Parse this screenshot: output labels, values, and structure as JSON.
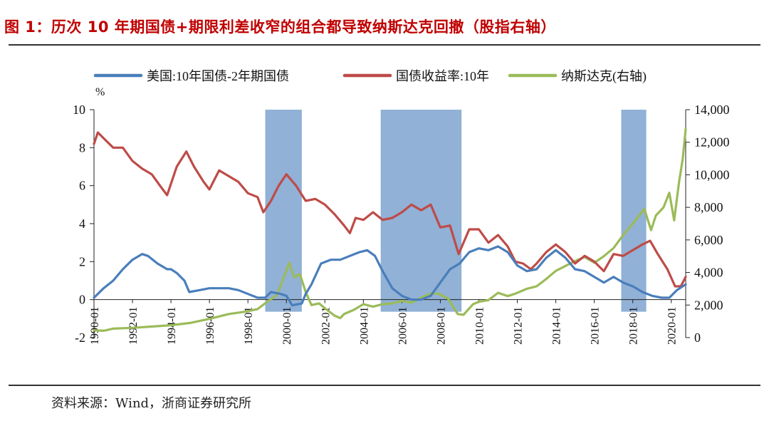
{
  "figure": {
    "title": "图 1：历次 10 年期国债+期限利差收窄的组合都导致纳斯达克回撤（股指右轴）",
    "source": "资料来源：Wind，浙商证券研究所"
  },
  "chart_data": {
    "type": "line",
    "title": "图 1：历次 10 年期国债+期限利差收窄的组合都导致纳斯达克回撤（股指右轴）",
    "left_axis": {
      "unit_label": "%",
      "range": [
        -2,
        10
      ],
      "ticks": [
        -2,
        0,
        2,
        4,
        6,
        8,
        10
      ]
    },
    "right_axis": {
      "range": [
        0,
        14000
      ],
      "ticks": [
        0,
        2000,
        4000,
        6000,
        8000,
        10000,
        12000,
        14000
      ],
      "tick_labels": [
        "0",
        "2,000",
        "4,000",
        "6,000",
        "8,000",
        "10,000",
        "12,000",
        "14,000"
      ]
    },
    "x_axis": {
      "range": [
        1990.0,
        2020.75
      ],
      "ticks": [
        1990,
        1992,
        1994,
        1996,
        1998,
        2000,
        2002,
        2004,
        2006,
        2008,
        2010,
        2012,
        2014,
        2016,
        2018,
        2020
      ],
      "tick_labels": [
        "1990-01",
        "1992-01",
        "1994-01",
        "1996-01",
        "1998-01",
        "2000-01",
        "2002-01",
        "2004-01",
        "2006-01",
        "2008-01",
        "2010-01",
        "2012-01",
        "2014-01",
        "2016-01",
        "2018-01",
        "2020-01"
      ]
    },
    "legend_position": "top",
    "shaded_periods": [
      {
        "start": 1998.9,
        "end": 2000.8
      },
      {
        "start": 2004.9,
        "end": 2009.1
      },
      {
        "start": 2017.4,
        "end": 2018.7
      }
    ],
    "series": [
      {
        "name": "美国:10年国债-2年期国债",
        "color": "#4a7ebb",
        "axis": "left",
        "points": [
          [
            1990.0,
            0.1
          ],
          [
            1990.5,
            0.6
          ],
          [
            1991.0,
            1.0
          ],
          [
            1991.5,
            1.6
          ],
          [
            1992.0,
            2.1
          ],
          [
            1992.5,
            2.4
          ],
          [
            1992.8,
            2.3
          ],
          [
            1993.3,
            1.9
          ],
          [
            1993.8,
            1.6
          ],
          [
            1994.0,
            1.6
          ],
          [
            1994.3,
            1.4
          ],
          [
            1994.7,
            1.0
          ],
          [
            1994.95,
            0.4
          ],
          [
            1995.5,
            0.5
          ],
          [
            1996.0,
            0.6
          ],
          [
            1996.5,
            0.6
          ],
          [
            1997.0,
            0.6
          ],
          [
            1997.5,
            0.5
          ],
          [
            1998.0,
            0.3
          ],
          [
            1998.5,
            0.1
          ],
          [
            1998.9,
            0.1
          ],
          [
            1999.2,
            0.4
          ],
          [
            1999.7,
            0.3
          ],
          [
            2000.0,
            0.2
          ],
          [
            2000.3,
            -0.3
          ],
          [
            2000.8,
            -0.2
          ],
          [
            2001.0,
            0.3
          ],
          [
            2001.3,
            0.8
          ],
          [
            2001.8,
            1.9
          ],
          [
            2002.3,
            2.1
          ],
          [
            2002.8,
            2.1
          ],
          [
            2003.3,
            2.3
          ],
          [
            2003.8,
            2.5
          ],
          [
            2004.2,
            2.6
          ],
          [
            2004.6,
            2.3
          ],
          [
            2005.0,
            1.5
          ],
          [
            2005.5,
            0.6
          ],
          [
            2006.0,
            0.2
          ],
          [
            2006.5,
            0.0
          ],
          [
            2007.0,
            0.0
          ],
          [
            2007.5,
            0.2
          ],
          [
            2008.0,
            0.9
          ],
          [
            2008.5,
            1.6
          ],
          [
            2009.0,
            1.9
          ],
          [
            2009.5,
            2.5
          ],
          [
            2010.0,
            2.7
          ],
          [
            2010.5,
            2.6
          ],
          [
            2011.0,
            2.8
          ],
          [
            2011.5,
            2.5
          ],
          [
            2012.0,
            1.8
          ],
          [
            2012.5,
            1.5
          ],
          [
            2013.0,
            1.6
          ],
          [
            2013.5,
            2.2
          ],
          [
            2014.0,
            2.6
          ],
          [
            2014.5,
            2.2
          ],
          [
            2015.0,
            1.6
          ],
          [
            2015.5,
            1.5
          ],
          [
            2016.0,
            1.2
          ],
          [
            2016.5,
            0.9
          ],
          [
            2017.0,
            1.2
          ],
          [
            2017.5,
            0.9
          ],
          [
            2018.0,
            0.7
          ],
          [
            2018.5,
            0.4
          ],
          [
            2019.0,
            0.2
          ],
          [
            2019.5,
            0.1
          ],
          [
            2019.9,
            0.1
          ],
          [
            2020.3,
            0.5
          ],
          [
            2020.75,
            0.8
          ]
        ]
      },
      {
        "name": "国债收益率:10年",
        "color": "#be4b48",
        "axis": "left",
        "points": [
          [
            1990.0,
            8.2
          ],
          [
            1990.2,
            8.8
          ],
          [
            1990.6,
            8.4
          ],
          [
            1991.0,
            8.0
          ],
          [
            1991.5,
            8.0
          ],
          [
            1992.0,
            7.3
          ],
          [
            1992.5,
            6.9
          ],
          [
            1993.0,
            6.6
          ],
          [
            1993.5,
            5.9
          ],
          [
            1993.8,
            5.5
          ],
          [
            1994.3,
            7.0
          ],
          [
            1994.8,
            7.8
          ],
          [
            1995.2,
            7.0
          ],
          [
            1995.7,
            6.2
          ],
          [
            1996.0,
            5.8
          ],
          [
            1996.5,
            6.8
          ],
          [
            1997.0,
            6.5
          ],
          [
            1997.5,
            6.2
          ],
          [
            1998.0,
            5.6
          ],
          [
            1998.5,
            5.4
          ],
          [
            1998.8,
            4.6
          ],
          [
            1999.2,
            5.2
          ],
          [
            1999.6,
            6.0
          ],
          [
            2000.0,
            6.6
          ],
          [
            2000.5,
            6.0
          ],
          [
            2001.0,
            5.2
          ],
          [
            2001.5,
            5.3
          ],
          [
            2002.0,
            5.0
          ],
          [
            2002.5,
            4.5
          ],
          [
            2003.0,
            3.9
          ],
          [
            2003.3,
            3.5
          ],
          [
            2003.6,
            4.3
          ],
          [
            2004.0,
            4.2
          ],
          [
            2004.5,
            4.6
          ],
          [
            2005.0,
            4.2
          ],
          [
            2005.5,
            4.3
          ],
          [
            2006.0,
            4.6
          ],
          [
            2006.5,
            5.0
          ],
          [
            2007.0,
            4.7
          ],
          [
            2007.5,
            5.0
          ],
          [
            2008.0,
            3.8
          ],
          [
            2008.5,
            3.9
          ],
          [
            2008.95,
            2.4
          ],
          [
            2009.5,
            3.7
          ],
          [
            2010.0,
            3.7
          ],
          [
            2010.5,
            3.0
          ],
          [
            2011.0,
            3.4
          ],
          [
            2011.5,
            2.8
          ],
          [
            2011.9,
            2.0
          ],
          [
            2012.3,
            1.9
          ],
          [
            2012.7,
            1.6
          ],
          [
            2013.0,
            1.9
          ],
          [
            2013.5,
            2.5
          ],
          [
            2014.0,
            2.9
          ],
          [
            2014.5,
            2.5
          ],
          [
            2015.0,
            1.9
          ],
          [
            2015.5,
            2.3
          ],
          [
            2016.0,
            2.0
          ],
          [
            2016.5,
            1.5
          ],
          [
            2017.0,
            2.4
          ],
          [
            2017.5,
            2.3
          ],
          [
            2018.0,
            2.6
          ],
          [
            2018.5,
            2.9
          ],
          [
            2018.9,
            3.1
          ],
          [
            2019.3,
            2.4
          ],
          [
            2019.8,
            1.6
          ],
          [
            2020.2,
            0.7
          ],
          [
            2020.5,
            0.7
          ],
          [
            2020.75,
            1.2
          ]
        ]
      },
      {
        "name": "纳斯达克(右轴)",
        "color": "#9bbb59",
        "axis": "right",
        "points": [
          [
            1990.0,
            450
          ],
          [
            1990.5,
            420
          ],
          [
            1991.0,
            550
          ],
          [
            1992.0,
            600
          ],
          [
            1993.0,
            680
          ],
          [
            1994.0,
            760
          ],
          [
            1995.0,
            900
          ],
          [
            1996.0,
            1150
          ],
          [
            1997.0,
            1450
          ],
          [
            1997.9,
            1600
          ],
          [
            1998.5,
            1750
          ],
          [
            1999.0,
            2200
          ],
          [
            1999.5,
            2600
          ],
          [
            1999.9,
            3800
          ],
          [
            2000.15,
            4600
          ],
          [
            2000.4,
            3700
          ],
          [
            2000.7,
            3900
          ],
          [
            2001.0,
            2800
          ],
          [
            2001.3,
            2000
          ],
          [
            2001.7,
            2100
          ],
          [
            2002.0,
            1800
          ],
          [
            2002.5,
            1350
          ],
          [
            2002.8,
            1200
          ],
          [
            2003.0,
            1450
          ],
          [
            2003.5,
            1700
          ],
          [
            2004.0,
            2050
          ],
          [
            2004.5,
            1900
          ],
          [
            2005.0,
            2050
          ],
          [
            2005.5,
            2100
          ],
          [
            2006.0,
            2250
          ],
          [
            2006.5,
            2150
          ],
          [
            2007.0,
            2450
          ],
          [
            2007.5,
            2700
          ],
          [
            2007.9,
            2700
          ],
          [
            2008.4,
            2400
          ],
          [
            2008.9,
            1450
          ],
          [
            2009.2,
            1400
          ],
          [
            2009.7,
            2050
          ],
          [
            2010.0,
            2200
          ],
          [
            2010.5,
            2300
          ],
          [
            2011.0,
            2750
          ],
          [
            2011.5,
            2550
          ],
          [
            2011.9,
            2700
          ],
          [
            2012.5,
            3000
          ],
          [
            2013.0,
            3150
          ],
          [
            2013.5,
            3600
          ],
          [
            2014.0,
            4100
          ],
          [
            2014.5,
            4400
          ],
          [
            2015.0,
            4700
          ],
          [
            2015.5,
            4950
          ],
          [
            2016.0,
            4600
          ],
          [
            2016.5,
            5000
          ],
          [
            2017.0,
            5500
          ],
          [
            2017.5,
            6300
          ],
          [
            2018.0,
            7000
          ],
          [
            2018.6,
            7900
          ],
          [
            2018.95,
            6600
          ],
          [
            2019.2,
            7500
          ],
          [
            2019.6,
            8000
          ],
          [
            2019.9,
            8900
          ],
          [
            2020.15,
            7200
          ],
          [
            2020.4,
            9500
          ],
          [
            2020.6,
            11000
          ],
          [
            2020.75,
            12800
          ]
        ]
      }
    ]
  }
}
